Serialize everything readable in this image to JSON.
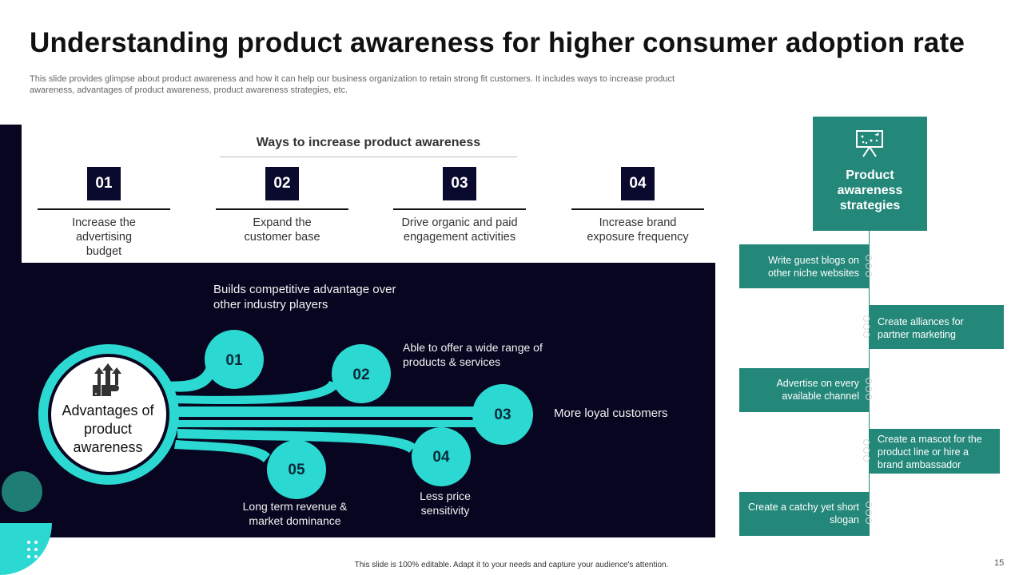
{
  "title": "Understanding product awareness for higher consumer adoption rate",
  "subtitle": "This slide provides glimpse about product awareness and how it can help our business organization to retain strong fit customers. It includes ways to increase product  awareness, advantages of product awareness, product awareness strategies, etc.",
  "ways": {
    "heading": "Ways to increase product awareness",
    "items": [
      {
        "num": "01",
        "text": "Increase the advertising budget"
      },
      {
        "num": "02",
        "text": "Expand the customer base"
      },
      {
        "num": "03",
        "text": "Drive organic and paid engagement activities"
      },
      {
        "num": "04",
        "text": "Increase brand exposure frequency"
      }
    ]
  },
  "advantages": {
    "hub_title": "Advantages of product awareness",
    "items": [
      {
        "num": "01",
        "text": "Builds competitive advantage over other industry players"
      },
      {
        "num": "02",
        "text": "Able to offer a wide range of products & services"
      },
      {
        "num": "03",
        "text": "More loyal customers"
      },
      {
        "num": "04",
        "text": "Less price sensitivity"
      },
      {
        "num": "05",
        "text": "Long term revenue & market dominance"
      }
    ]
  },
  "strategies": {
    "heading": "Product awareness strategies",
    "items": [
      {
        "text": "Write guest blogs on other niche websites"
      },
      {
        "text": "Create alliances for partner marketing"
      },
      {
        "text": "Advertise on every available channel"
      },
      {
        "text": "Create a mascot for the product line or hire a brand ambassador"
      },
      {
        "text": "Create a catchy yet short slogan"
      }
    ]
  },
  "footer": "This slide is 100% editable. Adapt it to your needs and capture your audience's attention.",
  "page_number": "15",
  "icons": {
    "hub": "growth-arrows-hand-icon",
    "strategies": "strategy-board-icon"
  },
  "colors": {
    "dark_bg": "#07051f",
    "cyan": "#2bd9d2",
    "teal": "#238779",
    "number_box": "#0a0a2e"
  }
}
